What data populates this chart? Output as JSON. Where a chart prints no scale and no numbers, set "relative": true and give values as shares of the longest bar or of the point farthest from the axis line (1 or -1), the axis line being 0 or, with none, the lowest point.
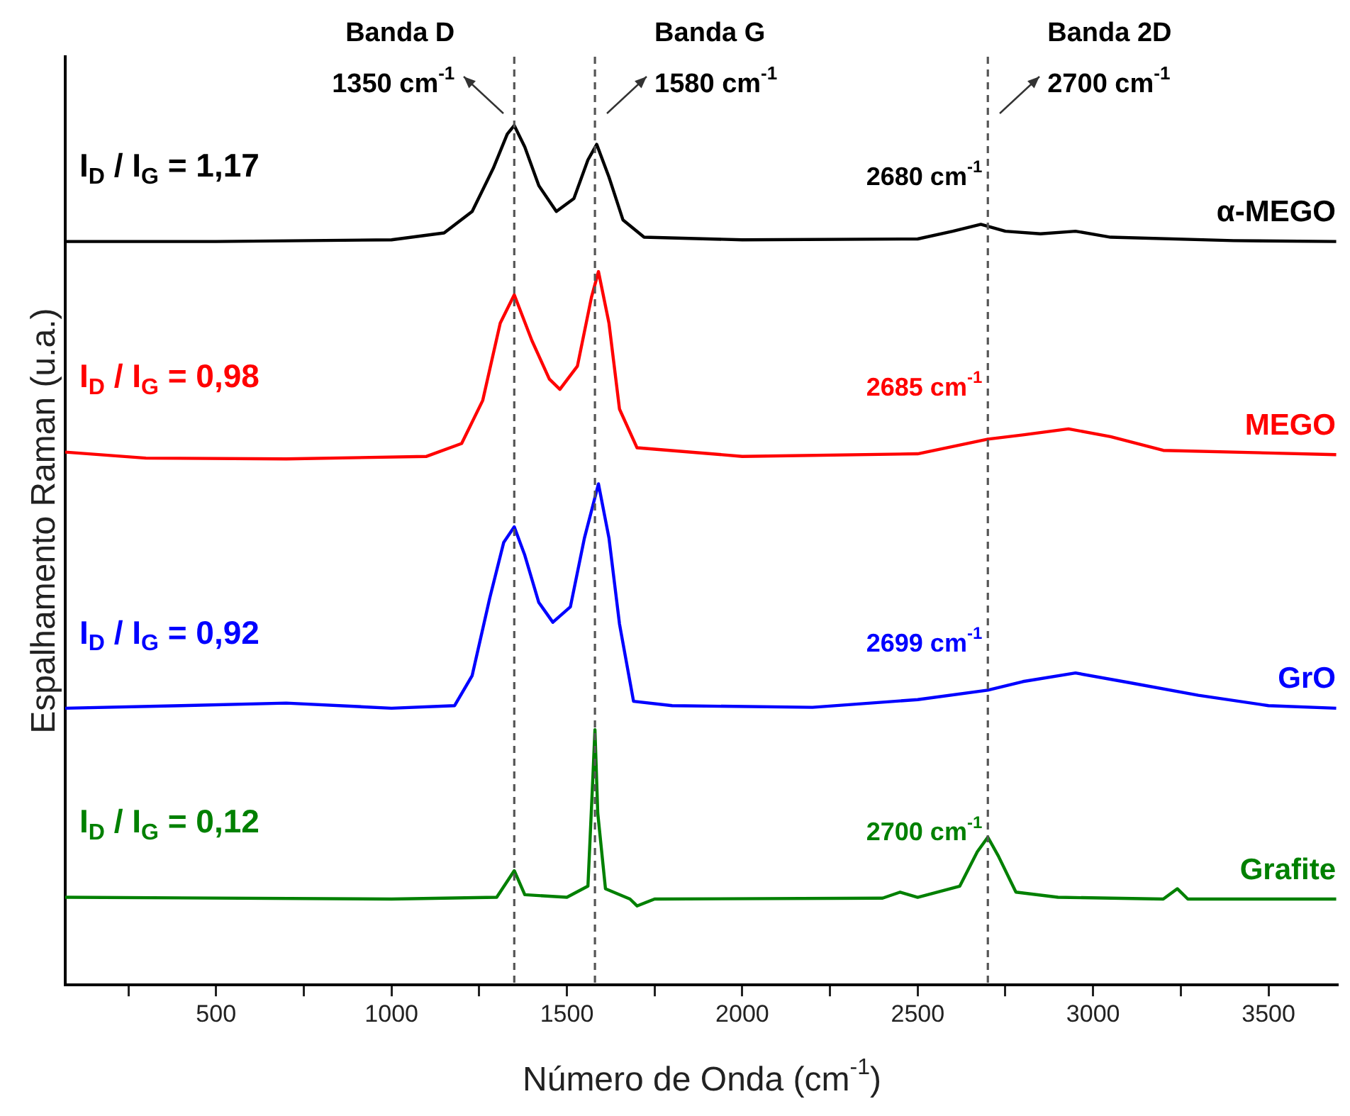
{
  "chart_data": {
    "type": "line",
    "relative": true,
    "xlabel": "Número de Onda (cm$^{-1}$)",
    "ylabel": "Espalhamento Raman (u.a.)",
    "xlim": [
      70,
      3700
    ],
    "xticks": [
      {
        "value": 250,
        "label": null
      },
      500,
      {
        "value": 750,
        "label": null
      },
      1000,
      {
        "value": 1250,
        "label": null
      },
      1500,
      {
        "value": 1750,
        "label": null
      },
      2000,
      {
        "value": 2250,
        "label": null
      },
      2500,
      {
        "value": 2750,
        "label": null
      },
      3000,
      {
        "value": 3250,
        "label": null
      },
      3500
    ],
    "grid": false,
    "legend": false,
    "marker": "none",
    "line_style": "solid",
    "series": [
      {
        "name": "α-MEGO",
        "color": "#000000",
        "x": [
          70,
          500,
          1000,
          1150,
          1230,
          1290,
          1330,
          1350,
          1380,
          1420,
          1470,
          1520,
          1560,
          1585,
          1620,
          1660,
          1720,
          2000,
          2500,
          2600,
          2680,
          2750,
          2850,
          2950,
          3050,
          3400,
          3693
        ],
        "values": [
          0.865,
          0.865,
          0.867,
          0.875,
          0.9,
          0.95,
          0.99,
          1.0,
          0.975,
          0.93,
          0.9,
          0.915,
          0.96,
          0.978,
          0.94,
          0.89,
          0.87,
          0.867,
          0.868,
          0.877,
          0.885,
          0.877,
          0.874,
          0.877,
          0.87,
          0.866,
          0.865
        ]
      },
      {
        "name": "MEGO",
        "color": "#ff0000",
        "x": [
          70,
          300,
          700,
          1100,
          1200,
          1260,
          1310,
          1350,
          1400,
          1450,
          1480,
          1530,
          1570,
          1590,
          1620,
          1650,
          1700,
          2000,
          2500,
          2700,
          2800,
          2930,
          3050,
          3200,
          3693
        ],
        "values": [
          0.62,
          0.613,
          0.612,
          0.615,
          0.63,
          0.68,
          0.77,
          0.803,
          0.75,
          0.705,
          0.693,
          0.72,
          0.8,
          0.83,
          0.77,
          0.67,
          0.625,
          0.615,
          0.618,
          0.635,
          0.64,
          0.647,
          0.638,
          0.622,
          0.617
        ]
      },
      {
        "name": "GrO",
        "color": "#0000ff",
        "x": [
          70,
          400,
          700,
          1000,
          1180,
          1230,
          1280,
          1320,
          1350,
          1380,
          1420,
          1460,
          1510,
          1550,
          1590,
          1620,
          1650,
          1690,
          1800,
          2200,
          2500,
          2700,
          2800,
          2950,
          3100,
          3300,
          3500,
          3693
        ],
        "values": [
          0.322,
          0.325,
          0.328,
          0.322,
          0.325,
          0.36,
          0.45,
          0.515,
          0.533,
          0.5,
          0.445,
          0.422,
          0.44,
          0.52,
          0.583,
          0.52,
          0.42,
          0.33,
          0.325,
          0.323,
          0.332,
          0.343,
          0.353,
          0.363,
          0.352,
          0.337,
          0.325,
          0.322
        ]
      },
      {
        "name": "Grafite",
        "color": "#008000",
        "x": [
          70,
          1000,
          1300,
          1350,
          1380,
          1500,
          1560,
          1575,
          1580,
          1588,
          1610,
          1680,
          1700,
          1750,
          2400,
          2450,
          2500,
          2620,
          2670,
          2700,
          2730,
          2780,
          2900,
          3200,
          3240,
          3270,
          3693
        ],
        "values": [
          0.102,
          0.1,
          0.102,
          0.133,
          0.105,
          0.102,
          0.115,
          0.25,
          0.297,
          0.2,
          0.112,
          0.1,
          0.092,
          0.1,
          0.101,
          0.108,
          0.102,
          0.115,
          0.155,
          0.172,
          0.15,
          0.108,
          0.102,
          0.1,
          0.112,
          0.1,
          0.1
        ]
      }
    ],
    "ref_lines": [
      {
        "axis": "x",
        "value": 1350,
        "label": "Banda D\n1350 cm$^{-1}$",
        "color": "#555555",
        "line_style": "dashed"
      },
      {
        "axis": "x",
        "value": 1580,
        "label": "Banda G\n1580 cm$^{-1}$",
        "color": "#555555",
        "line_style": "dashed"
      },
      {
        "axis": "x",
        "value": 2700,
        "label": "Banda 2D\n2700 cm$^{-1}$",
        "color": "#555555",
        "line_style": "dashed"
      }
    ],
    "annotations": [
      "I$_{D}$ / I$_{G}$ = 1,17",
      "2680 cm$^{-1}$",
      "I$_{D}$ / I$_{G}$ = 0,98",
      "2685 cm$^{-1}$",
      "I$_{D}$ / I$_{G}$ = 0,92",
      "2699 cm$^{-1}$",
      "I$_{D}$ / I$_{G}$ = 0,12",
      "2700 cm$^{-1}$"
    ]
  }
}
